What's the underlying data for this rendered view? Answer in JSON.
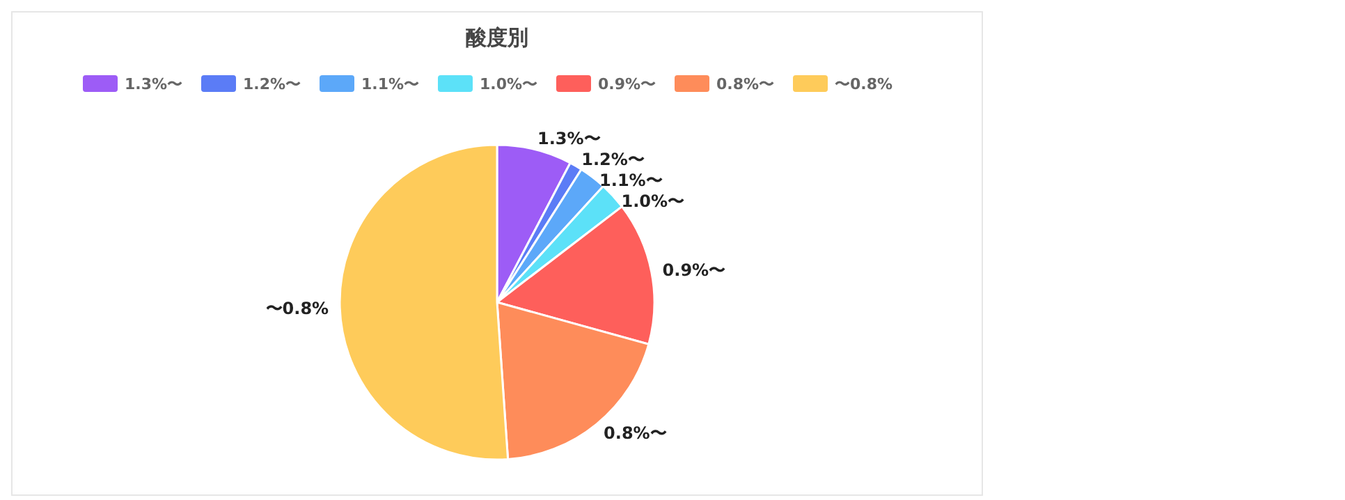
{
  "chart_data": {
    "type": "pie",
    "title": "酸度別",
    "categories": [
      "1.3%〜",
      "1.2%〜",
      "1.1%〜",
      "1.0%〜",
      "0.9%〜",
      "0.8%〜",
      "〜0.8%"
    ],
    "values": [
      7.7,
      1.3,
      2.8,
      2.8,
      14.7,
      19.6,
      51.1
    ],
    "colors": [
      "#9d5cf6",
      "#5b7cf6",
      "#5ca8f9",
      "#5ce1f8",
      "#fe5f5b",
      "#fe8c5a",
      "#fecb5a"
    ],
    "legend": "top"
  }
}
